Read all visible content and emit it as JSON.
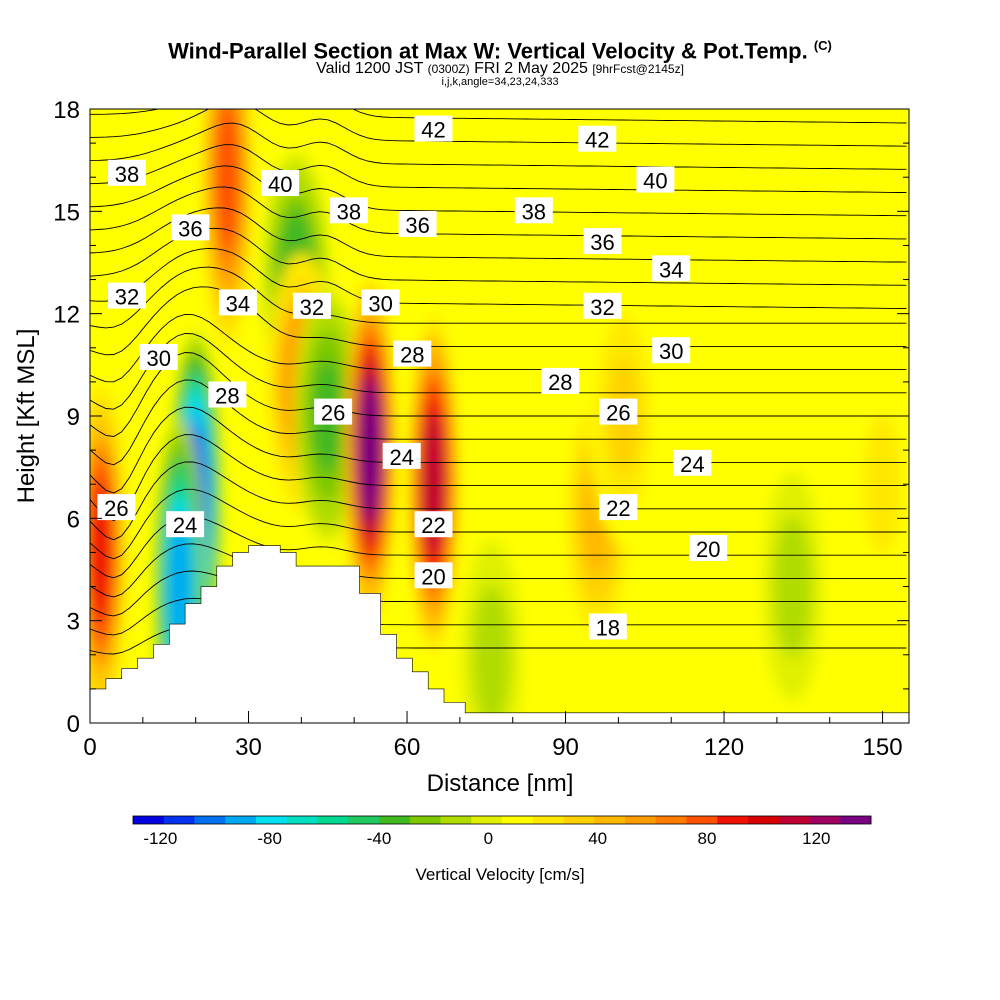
{
  "header": {
    "title": "Wind-Parallel Section at Max W: Vertical Velocity & Pot.Temp.",
    "copyright": "(C)",
    "valid_prefix": "Valid 1200 JST",
    "valid_zulu": "(0300Z)",
    "valid_date": "FRI 2 May 2025",
    "forecast": "[9hrFcst@2145z]",
    "ijk": "i,j,k,angle=34,23,24,333"
  },
  "chart_data": {
    "type": "heatmap",
    "xlabel": "Distance [nm]",
    "ylabel": "Height [Kft MSL]",
    "xlim": [
      0,
      155
    ],
    "ylim": [
      0,
      18
    ],
    "xticks": [
      0,
      30,
      60,
      90,
      120,
      150
    ],
    "yticks": [
      0,
      3,
      6,
      9,
      12,
      15,
      18
    ],
    "colorbar": {
      "label": "Vertical Velocity [cm/s]",
      "ticks": [
        -120,
        -80,
        -40,
        0,
        40,
        80,
        120
      ],
      "range": [
        -130,
        140
      ],
      "colors": [
        "#0000e0",
        "#0030f0",
        "#0070f0",
        "#00a8f0",
        "#00e0f0",
        "#00e0c0",
        "#00d890",
        "#20c860",
        "#40b820",
        "#7cc800",
        "#b0dc00",
        "#e0f000",
        "#ffff00",
        "#ffe800",
        "#ffd000",
        "#ffb800",
        "#ff9c00",
        "#ff7c00",
        "#ff5000",
        "#f01000",
        "#d80000",
        "#c00030",
        "#a00060",
        "#780080"
      ]
    },
    "terrain_kft": [
      [
        0,
        1
      ],
      [
        3,
        1
      ],
      [
        3,
        1.3
      ],
      [
        6,
        1.3
      ],
      [
        6,
        1.6
      ],
      [
        9,
        1.6
      ],
      [
        9,
        1.9
      ],
      [
        12,
        1.9
      ],
      [
        12,
        2.3
      ],
      [
        15,
        2.3
      ],
      [
        15,
        2.9
      ],
      [
        18,
        2.9
      ],
      [
        18,
        3.5
      ],
      [
        21,
        3.5
      ],
      [
        21,
        4.0
      ],
      [
        24,
        4.0
      ],
      [
        24,
        4.6
      ],
      [
        27,
        4.6
      ],
      [
        27,
        5.0
      ],
      [
        30,
        5.0
      ],
      [
        30,
        5.2
      ],
      [
        36,
        5.2
      ],
      [
        36,
        5.0
      ],
      [
        39,
        5.0
      ],
      [
        39,
        4.6
      ],
      [
        51,
        4.6
      ],
      [
        51,
        3.8
      ],
      [
        55,
        3.8
      ],
      [
        55,
        2.6
      ],
      [
        58,
        2.6
      ],
      [
        58,
        1.9
      ],
      [
        61,
        1.9
      ],
      [
        61,
        1.5
      ],
      [
        64,
        1.5
      ],
      [
        64,
        1.0
      ],
      [
        67,
        1.0
      ],
      [
        67,
        0.6
      ],
      [
        71,
        0.6
      ],
      [
        71,
        0.3
      ],
      [
        155,
        0.3
      ]
    ],
    "velocity_features": [
      {
        "x": 2,
        "z": 5,
        "value": 90
      },
      {
        "x": 20,
        "z": 6.5,
        "value": -115
      },
      {
        "x": 17,
        "z": 4,
        "value": -95
      },
      {
        "x": 26,
        "z": 16,
        "value": 80
      },
      {
        "x": 39,
        "z": 13,
        "value": -40
      },
      {
        "x": 40,
        "z": 10,
        "value": 60
      },
      {
        "x": 45,
        "z": 9,
        "value": -35
      },
      {
        "x": 53,
        "z": 8,
        "value": 130
      },
      {
        "x": 65,
        "z": 7,
        "value": 110
      },
      {
        "x": 96,
        "z": 6,
        "value": 40
      },
      {
        "x": 101,
        "z": 9,
        "value": 30
      },
      {
        "x": 76,
        "z": 2,
        "value": -10
      },
      {
        "x": 133,
        "z": 4,
        "value": -10
      },
      {
        "x": 150,
        "z": 7,
        "value": 20
      }
    ],
    "theta_labels": [
      {
        "v": "42",
        "x": 65,
        "z": 17.4
      },
      {
        "v": "42",
        "x": 96,
        "z": 17.1
      },
      {
        "v": "38",
        "x": 7,
        "z": 16.1
      },
      {
        "v": "40",
        "x": 36,
        "z": 15.8
      },
      {
        "v": "40",
        "x": 107,
        "z": 15.9
      },
      {
        "v": "36",
        "x": 19,
        "z": 14.5
      },
      {
        "v": "38",
        "x": 49,
        "z": 15
      },
      {
        "v": "38",
        "x": 84,
        "z": 15
      },
      {
        "v": "36",
        "x": 62,
        "z": 14.6
      },
      {
        "v": "36",
        "x": 97,
        "z": 14.1
      },
      {
        "v": "34",
        "x": 110,
        "z": 13.3
      },
      {
        "v": "32",
        "x": 7,
        "z": 12.5
      },
      {
        "v": "34",
        "x": 28,
        "z": 12.3
      },
      {
        "v": "32",
        "x": 42,
        "z": 12.2
      },
      {
        "v": "30",
        "x": 55,
        "z": 12.3
      },
      {
        "v": "32",
        "x": 97,
        "z": 12.2
      },
      {
        "v": "30",
        "x": 13,
        "z": 10.7
      },
      {
        "v": "28",
        "x": 61,
        "z": 10.8
      },
      {
        "v": "30",
        "x": 110,
        "z": 10.9
      },
      {
        "v": "28",
        "x": 89,
        "z": 10
      },
      {
        "v": "28",
        "x": 26,
        "z": 9.6
      },
      {
        "v": "26",
        "x": 46,
        "z": 9.1
      },
      {
        "v": "26",
        "x": 100,
        "z": 9.1
      },
      {
        "v": "24",
        "x": 59,
        "z": 7.8
      },
      {
        "v": "24",
        "x": 114,
        "z": 7.6
      },
      {
        "v": "26",
        "x": 5,
        "z": 6.3
      },
      {
        "v": "24",
        "x": 18,
        "z": 5.8
      },
      {
        "v": "22",
        "x": 65,
        "z": 5.8
      },
      {
        "v": "22",
        "x": 100,
        "z": 6.3
      },
      {
        "v": "20",
        "x": 117,
        "z": 5.1
      },
      {
        "v": "20",
        "x": 65,
        "z": 4.3
      },
      {
        "v": "18",
        "x": 98,
        "z": 2.8
      }
    ]
  }
}
